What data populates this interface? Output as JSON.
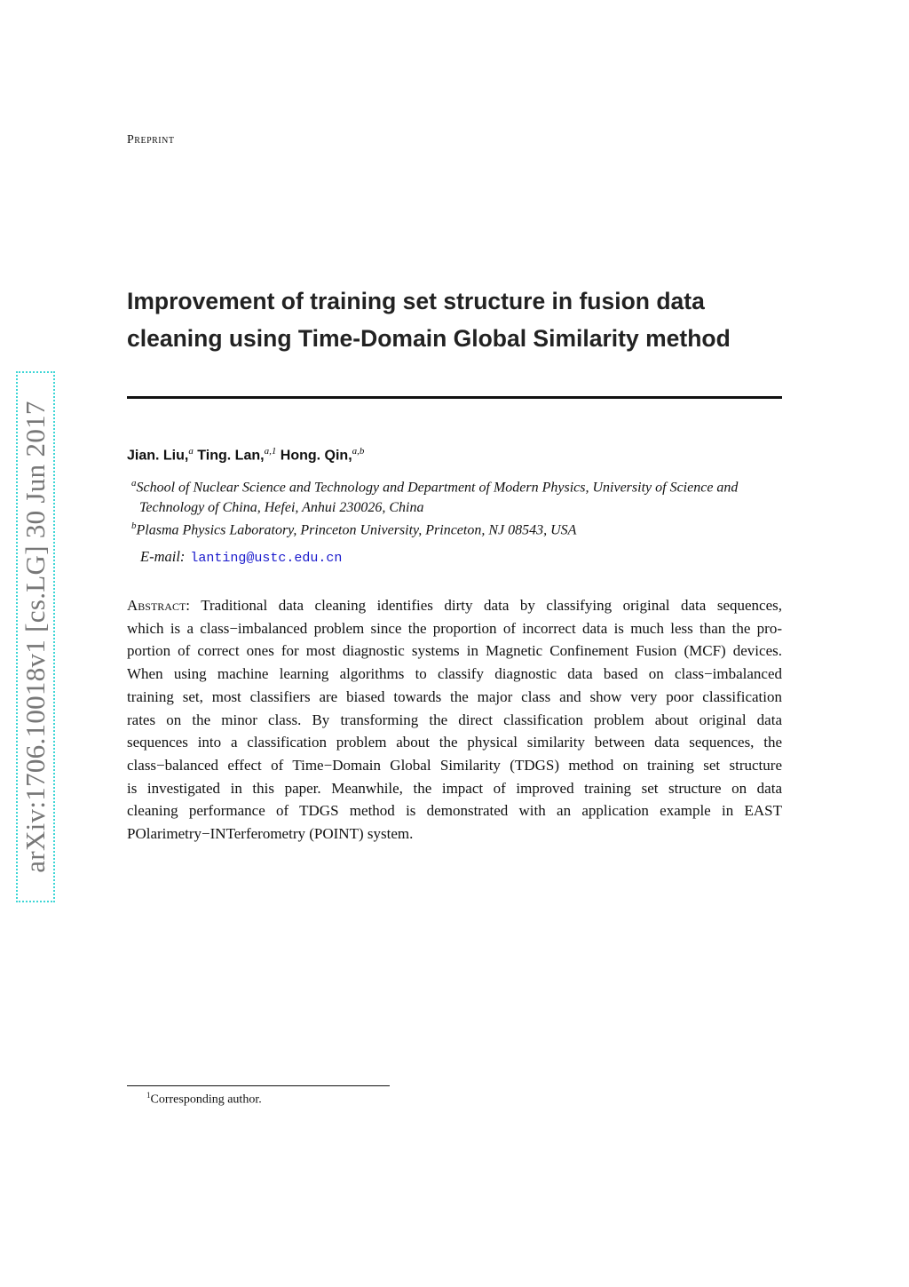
{
  "header": {
    "running_label": "Preprint"
  },
  "stamp": {
    "text": "arXiv:1706.10018v1  [cs.LG]  30 Jun 2017",
    "border_color": "#3dd6d6"
  },
  "title": {
    "line1": "Improvement of training set structure in fusion data",
    "line2": "cleaning using Time-Domain Global Similarity method"
  },
  "authors": [
    {
      "name": "Jian. Liu,",
      "sup": "a"
    },
    {
      "name": "Ting. Lan,",
      "sup": "a,1"
    },
    {
      "name": "Hong. Qin,",
      "sup": "a,b"
    }
  ],
  "affiliations": [
    {
      "mark": "a",
      "line1": "School of Nuclear Science and Technology and Department of Modern Physics, University of Science and",
      "line2": "Technology of China, Hefei, Anhui 230026, China"
    },
    {
      "mark": "b",
      "line1": "Plasma Physics Laboratory, Princeton University, Princeton, NJ 08543, USA"
    }
  ],
  "email": {
    "label": "E-mail:",
    "address": "lanting@ustc.edu.cn",
    "link_color": "#1a1acc"
  },
  "abstract": {
    "label": "Abstract:",
    "lines": [
      "Traditional data cleaning identifies dirty data by classifying original data sequences,",
      "which is a class−imbalanced problem since the proportion of incorrect data is much less than the pro-",
      "portion of correct ones for most diagnostic systems in Magnetic Confinement Fusion (MCF) devices.",
      "When using machine learning algorithms to classify diagnostic data based on class−imbalanced",
      "training set, most classifiers are biased towards the major class and show very poor classification",
      "rates on the minor class.  By transforming the direct classification problem about original data",
      "sequences into a classification problem about the physical similarity between data sequences, the",
      "class−balanced effect of Time−Domain Global Similarity (TDGS) method on training set structure",
      "is investigated in this paper.  Meanwhile, the impact of improved training set structure on data",
      "cleaning performance of TDGS method is demonstrated with an application example in EAST",
      "POlarimetry−INTerferometry (POINT) system."
    ]
  },
  "footnote": {
    "mark": "1",
    "text": "Corresponding author."
  }
}
